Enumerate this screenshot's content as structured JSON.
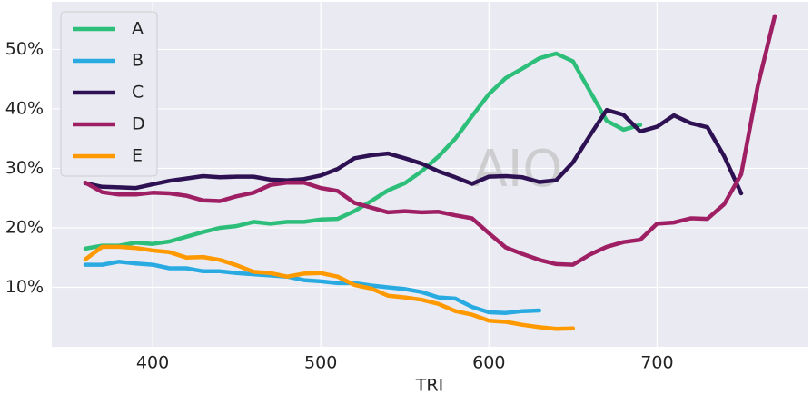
{
  "chart_data": {
    "type": "line",
    "x_label": "TRI",
    "watermark": "AIO",
    "x": [
      360,
      370,
      380,
      390,
      400,
      410,
      420,
      430,
      440,
      450,
      460,
      470,
      480,
      490,
      500,
      510,
      520,
      530,
      540,
      550,
      560,
      570,
      580,
      590,
      600,
      610,
      620,
      630,
      640,
      650,
      660,
      670,
      680,
      690,
      700,
      710,
      720,
      730,
      740,
      750,
      760,
      770
    ],
    "series": [
      {
        "name": "A",
        "color": "#2dbf7a",
        "values": [
          16.5,
          17,
          17,
          17.5,
          17.3,
          17.7,
          18.5,
          19.3,
          20,
          20.3,
          21,
          20.7,
          21,
          21,
          21.4,
          21.5,
          22.8,
          24.5,
          26.3,
          27.5,
          29.5,
          32,
          35,
          38.8,
          42.5,
          45.2,
          46.8,
          48.5,
          49.3,
          48,
          43,
          38,
          36.5,
          37.3,
          null,
          null,
          null,
          null,
          null,
          null,
          null,
          null
        ]
      },
      {
        "name": "B",
        "color": "#29abe2",
        "values": [
          13.8,
          13.8,
          14.3,
          14,
          13.8,
          13.2,
          13.2,
          12.7,
          12.7,
          12.4,
          12.2,
          12,
          11.8,
          11.2,
          11,
          10.7,
          10.7,
          10.3,
          10,
          9.7,
          9.2,
          8.3,
          8.1,
          6.7,
          5.8,
          5.7,
          6,
          6.1,
          null,
          null,
          null,
          null,
          null,
          null,
          null,
          null,
          null,
          null,
          null,
          null,
          null,
          null
        ]
      },
      {
        "name": "C",
        "color": "#2d1152",
        "values": [
          27.5,
          26.9,
          26.8,
          26.7,
          27.3,
          27.9,
          28.3,
          28.7,
          28.5,
          28.6,
          28.6,
          28.1,
          28,
          28.2,
          28.8,
          29.9,
          31.7,
          32.2,
          32.5,
          31.7,
          30.8,
          29.5,
          28.5,
          27.4,
          28.6,
          28.7,
          28.5,
          27.7,
          28,
          31,
          35.5,
          39.8,
          39,
          36.2,
          37,
          38.9,
          37.6,
          36.9,
          32,
          25.8,
          null,
          null
        ]
      },
      {
        "name": "D",
        "color": "#9e1f63",
        "values": [
          27.6,
          26,
          25.6,
          25.6,
          25.9,
          25.8,
          25.4,
          24.6,
          24.5,
          25.3,
          25.9,
          27.2,
          27.6,
          27.6,
          26.7,
          26.2,
          24.2,
          23.4,
          22.6,
          22.8,
          22.6,
          22.7,
          22.1,
          21.6,
          19.1,
          16.7,
          15.6,
          14.6,
          13.9,
          13.8,
          15.5,
          16.8,
          17.6,
          18,
          20.7,
          20.9,
          21.6,
          21.5,
          24,
          29,
          44,
          55.6
        ]
      },
      {
        "name": "E",
        "color": "#ff9900",
        "values": [
          14.7,
          16.8,
          16.8,
          16.6,
          16.2,
          15.9,
          15,
          15.1,
          14.6,
          13.7,
          12.6,
          12.4,
          11.8,
          12.3,
          12.4,
          11.8,
          10.4,
          9.8,
          8.6,
          8.3,
          7.9,
          7.2,
          6,
          5.4,
          4.4,
          4.2,
          3.7,
          3.3,
          3,
          3.1,
          null,
          null,
          null,
          null,
          null,
          null,
          null,
          null,
          null,
          null,
          null,
          null
        ]
      }
    ],
    "xlim": [
      340,
      790
    ],
    "xticks": [
      400,
      500,
      600,
      700
    ],
    "ylim": [
      0,
      58
    ],
    "yticks": [
      {
        "value": 10,
        "label": "10%"
      },
      {
        "value": 20,
        "label": "20%"
      },
      {
        "value": 30,
        "label": "30%"
      },
      {
        "value": 40,
        "label": "40%"
      },
      {
        "value": 50,
        "label": "50%"
      }
    ],
    "grid": true,
    "legend": "upper left",
    "background": "#eaeaf2"
  }
}
